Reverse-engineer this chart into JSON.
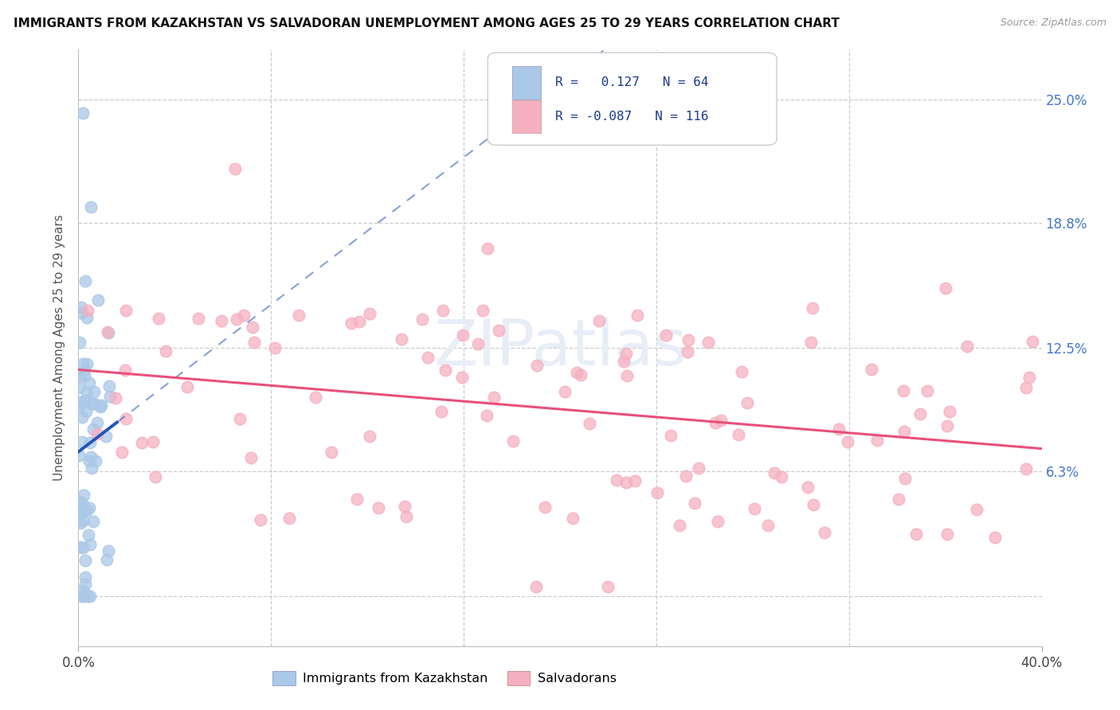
{
  "title": "IMMIGRANTS FROM KAZAKHSTAN VS SALVADORAN UNEMPLOYMENT AMONG AGES 25 TO 29 YEARS CORRELATION CHART",
  "source": "Source: ZipAtlas.com",
  "ylabel": "Unemployment Among Ages 25 to 29 years",
  "xlim": [
    0,
    0.4
  ],
  "ylim": [
    -0.025,
    0.275
  ],
  "ytick_positions": [
    0.0,
    0.063,
    0.125,
    0.188,
    0.25
  ],
  "right_ytick_positions": [
    0.063,
    0.125,
    0.188,
    0.25
  ],
  "right_ytick_labels": [
    "6.3%",
    "12.5%",
    "18.8%",
    "25.0%"
  ],
  "r_kazakhstan": 0.127,
  "n_kazakhstan": 64,
  "r_salvadoran": -0.087,
  "n_salvadoran": 116,
  "color_kazakhstan": "#aac8e8",
  "color_salvadoran": "#f5b0c0",
  "trend_color_kazakhstan": "#2255bb",
  "trend_color_salvadoran": "#e8507a",
  "background_color": "#ffffff",
  "legend_box_color": "#f0f4ff",
  "legend_text_color": "#1a3a8a",
  "watermark_color": "#e8eef8"
}
